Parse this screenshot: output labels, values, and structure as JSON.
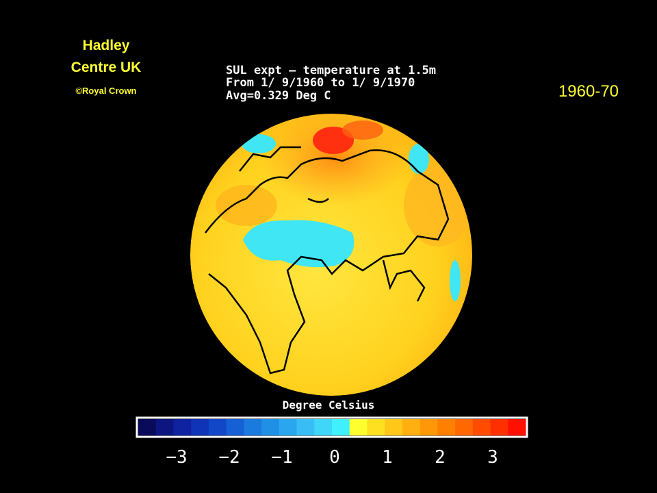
{
  "header": {
    "org_lines": [
      "Hadley",
      "Centre UK"
    ],
    "credit": "©Royal Crown",
    "period": "1960-70"
  },
  "plot_title": [
    "SUL expt — temperature at 1.5m",
    "From 1/ 9/1960 to 1/ 9/1970",
    "Avg=0.329 Deg C"
  ],
  "colorbar": {
    "label": "Degree Celsius",
    "ticks": [
      "−3",
      "−2",
      "−1",
      "0",
      "1",
      "2",
      "3"
    ],
    "colors": [
      "#0a0a5a",
      "#0d1680",
      "#0f22a0",
      "#1034b8",
      "#1248c8",
      "#1560d4",
      "#1a7ade",
      "#2090e6",
      "#2aa6ee",
      "#38bef4",
      "#3fd6f8",
      "#40f0ff",
      "#ffff30",
      "#ffe020",
      "#ffc818",
      "#ffb010",
      "#ff9808",
      "#ff8000",
      "#ff6800",
      "#ff4c00",
      "#ff3000",
      "#ff1000"
    ]
  }
}
